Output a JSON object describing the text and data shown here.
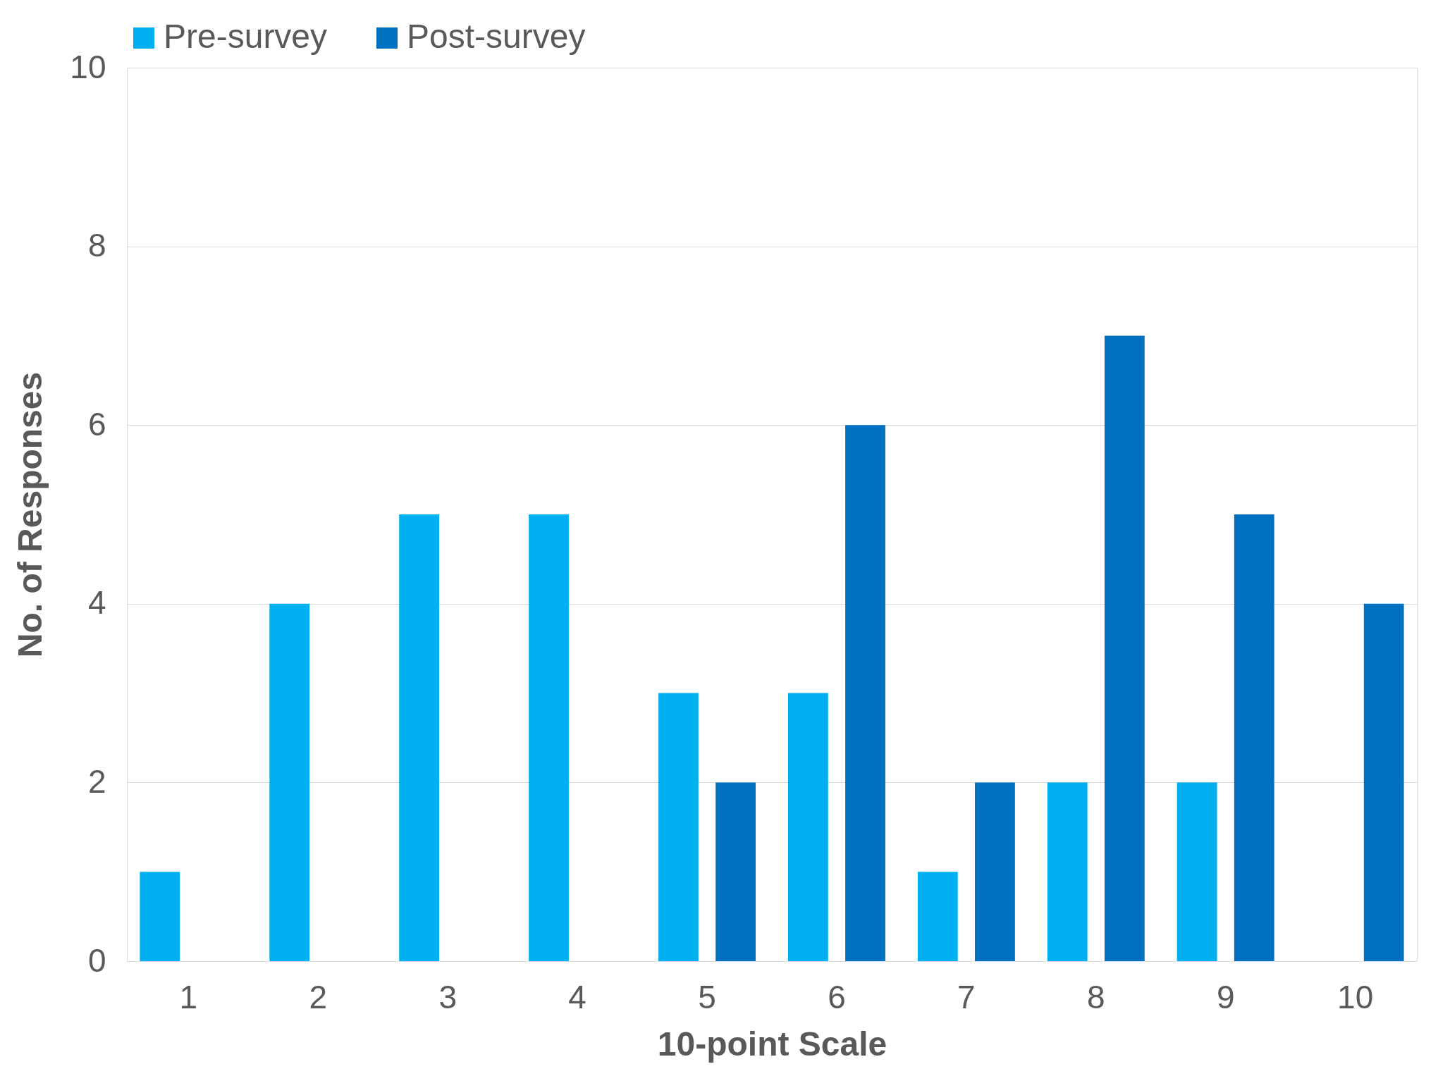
{
  "chart_data": {
    "type": "bar",
    "xlabel": "10-point Scale",
    "ylabel": "No. of Responses",
    "categories": [
      "1",
      "2",
      "3",
      "4",
      "5",
      "6",
      "7",
      "8",
      "9",
      "10"
    ],
    "series": [
      {
        "name": "Pre-survey",
        "color": "#00b0f0",
        "values": [
          1,
          4,
          5,
          5,
          3,
          3,
          1,
          2,
          2,
          0
        ]
      },
      {
        "name": "Post-survey",
        "color": "#0070c0",
        "values": [
          0,
          0,
          0,
          0,
          2,
          6,
          2,
          7,
          5,
          4
        ]
      }
    ],
    "ylim": [
      0,
      10
    ],
    "yticks": [
      0,
      2,
      4,
      6,
      8,
      10
    ],
    "grid": "y",
    "legend": "top"
  }
}
